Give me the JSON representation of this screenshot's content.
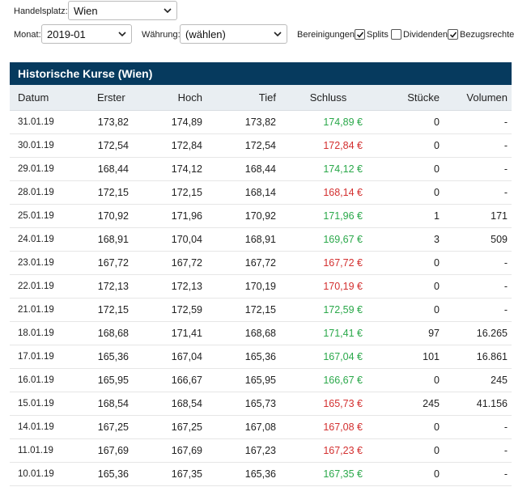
{
  "filters": {
    "exchange_label": "Handelsplatz:",
    "exchange_value": "Wien",
    "month_label": "Monat:",
    "month_value": "2019-01",
    "currency_label": "Währung:",
    "currency_value": "(wählen)",
    "adjust_label": "Bereinigungen:",
    "splits_label": "Splits",
    "splits_checked": true,
    "dividends_label": "Dividenden",
    "dividends_checked": false,
    "rights_label": "Bezugsrechte",
    "rights_checked": true
  },
  "table": {
    "title": "Historische Kurse (Wien)",
    "headers": {
      "date": "Datum",
      "first": "Erster",
      "high": "Hoch",
      "low": "Tief",
      "close": "Schluss",
      "pieces": "Stücke",
      "volume": "Volumen"
    },
    "colors": {
      "up": "#2aa84a",
      "down": "#d32f2f",
      "header_bg": "#063a5e"
    },
    "rows": [
      {
        "date": "31.01.19",
        "first": "173,82",
        "high": "174,89",
        "low": "173,82",
        "close": "174,89 €",
        "dir": "up",
        "pieces": "0",
        "volume": "-"
      },
      {
        "date": "30.01.19",
        "first": "172,54",
        "high": "172,84",
        "low": "172,54",
        "close": "172,84 €",
        "dir": "down",
        "pieces": "0",
        "volume": "-"
      },
      {
        "date": "29.01.19",
        "first": "168,44",
        "high": "174,12",
        "low": "168,44",
        "close": "174,12 €",
        "dir": "up",
        "pieces": "0",
        "volume": "-"
      },
      {
        "date": "28.01.19",
        "first": "172,15",
        "high": "172,15",
        "low": "168,14",
        "close": "168,14 €",
        "dir": "down",
        "pieces": "0",
        "volume": "-"
      },
      {
        "date": "25.01.19",
        "first": "170,92",
        "high": "171,96",
        "low": "170,92",
        "close": "171,96 €",
        "dir": "up",
        "pieces": "1",
        "volume": "171"
      },
      {
        "date": "24.01.19",
        "first": "168,91",
        "high": "170,04",
        "low": "168,91",
        "close": "169,67 €",
        "dir": "up",
        "pieces": "3",
        "volume": "509"
      },
      {
        "date": "23.01.19",
        "first": "167,72",
        "high": "167,72",
        "low": "167,72",
        "close": "167,72 €",
        "dir": "down",
        "pieces": "0",
        "volume": "-"
      },
      {
        "date": "22.01.19",
        "first": "172,13",
        "high": "172,13",
        "low": "170,19",
        "close": "170,19 €",
        "dir": "down",
        "pieces": "0",
        "volume": "-"
      },
      {
        "date": "21.01.19",
        "first": "172,15",
        "high": "172,59",
        "low": "172,15",
        "close": "172,59 €",
        "dir": "up",
        "pieces": "0",
        "volume": "-"
      },
      {
        "date": "18.01.19",
        "first": "168,68",
        "high": "171,41",
        "low": "168,68",
        "close": "171,41 €",
        "dir": "up",
        "pieces": "97",
        "volume": "16.265"
      },
      {
        "date": "17.01.19",
        "first": "165,36",
        "high": "167,04",
        "low": "165,36",
        "close": "167,04 €",
        "dir": "up",
        "pieces": "101",
        "volume": "16.861"
      },
      {
        "date": "16.01.19",
        "first": "165,95",
        "high": "166,67",
        "low": "165,95",
        "close": "166,67 €",
        "dir": "up",
        "pieces": "0",
        "volume": "245"
      },
      {
        "date": "15.01.19",
        "first": "168,54",
        "high": "168,54",
        "low": "165,73",
        "close": "165,73 €",
        "dir": "down",
        "pieces": "245",
        "volume": "41.156"
      },
      {
        "date": "14.01.19",
        "first": "167,25",
        "high": "167,25",
        "low": "167,08",
        "close": "167,08 €",
        "dir": "down",
        "pieces": "0",
        "volume": "-"
      },
      {
        "date": "11.01.19",
        "first": "167,69",
        "high": "167,69",
        "low": "167,23",
        "close": "167,23 €",
        "dir": "down",
        "pieces": "0",
        "volume": "-"
      },
      {
        "date": "10.01.19",
        "first": "165,36",
        "high": "167,35",
        "low": "165,36",
        "close": "167,35 €",
        "dir": "up",
        "pieces": "0",
        "volume": "-"
      }
    ]
  }
}
